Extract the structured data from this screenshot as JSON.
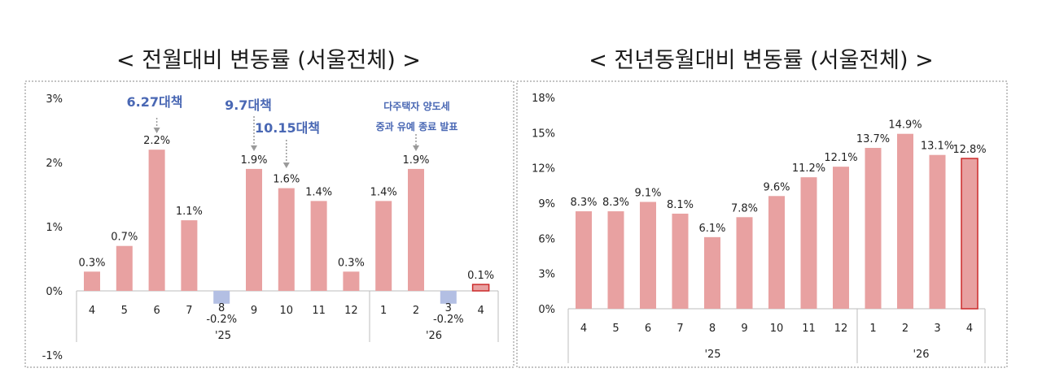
{
  "charts": [
    {
      "title": "< 전월대비 변동률 (서울전체) >",
      "chart_data": {
        "type": "bar",
        "categories": [
          "4",
          "5",
          "6",
          "7",
          "8",
          "9",
          "10",
          "11",
          "12",
          "1",
          "2",
          "3",
          "4"
        ],
        "year_groups": [
          {
            "label": "'25",
            "from": 0,
            "to": 8
          },
          {
            "label": "'26",
            "from": 9,
            "to": 12
          }
        ],
        "values": [
          0.3,
          0.7,
          2.2,
          1.1,
          -0.2,
          1.9,
          1.6,
          1.4,
          0.3,
          1.4,
          1.9,
          -0.2,
          0.1
        ],
        "value_labels": [
          "0.3%",
          "0.7%",
          "2.2%",
          "1.1%",
          "-0.2%",
          "1.9%",
          "1.6%",
          "1.4%",
          "0.3%",
          "1.4%",
          "1.9%",
          "-0.2%",
          "0.1%"
        ],
        "yticks": [
          3,
          2,
          1,
          0,
          -1
        ],
        "ytick_labels": [
          "3%",
          "2%",
          "1%",
          "0%",
          "-1%"
        ],
        "ylim": [
          -1,
          3
        ],
        "annotations": [
          {
            "text": "6.27대책",
            "target": 2
          },
          {
            "text": "9.7대책",
            "target": 5
          },
          {
            "text": "10.15대책",
            "target": 6
          },
          {
            "text": "다주택자 양도세",
            "text2": "중과 유예 종료 발표",
            "target": 10
          }
        ],
        "colors": {
          "positive": "#e8a1a1",
          "negative": "#b3bfe3",
          "highlight_border": "#cc2b2b",
          "annotation": "#4a68b4"
        }
      }
    },
    {
      "title": "< 전년동월대비 변동률 (서울전체) >",
      "chart_data": {
        "type": "bar",
        "categories": [
          "4",
          "5",
          "6",
          "7",
          "8",
          "9",
          "10",
          "11",
          "12",
          "1",
          "2",
          "3",
          "4"
        ],
        "year_groups": [
          {
            "label": "'25",
            "from": 0,
            "to": 8
          },
          {
            "label": "'26",
            "from": 9,
            "to": 12
          }
        ],
        "values": [
          8.3,
          8.3,
          9.1,
          8.1,
          6.1,
          7.8,
          9.6,
          11.2,
          12.1,
          13.7,
          14.9,
          13.1,
          12.8
        ],
        "value_labels": [
          "8.3%",
          "8.3%",
          "9.1%",
          "8.1%",
          "6.1%",
          "7.8%",
          "9.6%",
          "11.2%",
          "12.1%",
          "13.7%",
          "14.9%",
          "13.1%",
          "12.8%"
        ],
        "yticks": [
          18,
          15,
          12,
          9,
          6,
          3,
          0
        ],
        "ytick_labels": [
          "18%",
          "15%",
          "12%",
          "9%",
          "6%",
          "3%",
          "0%"
        ],
        "ylim": [
          0,
          18
        ],
        "colors": {
          "positive": "#e8a1a1",
          "highlight_border": "#cc2b2b"
        }
      }
    }
  ]
}
